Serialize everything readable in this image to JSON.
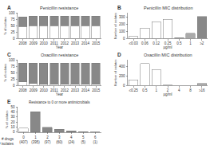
{
  "chart_data": [
    {
      "type": "bar",
      "title": "Penicillin resistance",
      "annotations": [
        "A"
      ],
      "x_label": "Year",
      "y_label": "% of isolates",
      "categories": [
        "2008",
        "2009",
        "2010",
        "2011",
        "2012",
        "2013",
        "2014",
        "2015"
      ],
      "stacked": true,
      "series": [
        {
          "color": "white",
          "values": [
            48,
            50,
            50,
            50,
            50,
            50,
            50,
            50
          ]
        },
        {
          "color": "#888888",
          "values": [
            37,
            38,
            38,
            38,
            38,
            38,
            38,
            38
          ]
        }
      ],
      "ylim": [
        0,
        100
      ],
      "yticks": [
        0,
        25,
        50,
        75,
        100
      ],
      "grid": false
    },
    {
      "type": "bar",
      "title": "Penicillin MIC distribution",
      "annotations": [
        "B"
      ],
      "x_label": "μg/ml",
      "y_label": "Number of isolates",
      "categories": [
        "≤0.03",
        "0.06",
        "0.12",
        "0.25",
        "0.5",
        "1",
        "≥2"
      ],
      "values": [
        28,
        145,
        235,
        270,
        14,
        75,
        310
      ],
      "colors": [
        "white",
        "white",
        "white",
        "white",
        "#aaaaaa",
        "#aaaaaa",
        "#888888"
      ],
      "ylim": [
        0,
        360
      ],
      "yticks": [
        0,
        100,
        200,
        300
      ],
      "grid": false
    },
    {
      "type": "bar",
      "title": "Oxacillin resistance",
      "annotations": [
        "C"
      ],
      "x_label": "Year",
      "y_label": "% of isolates",
      "categories": [
        "2008",
        "2009",
        "2010",
        "2011",
        "2012",
        "2013",
        "2014",
        "2015"
      ],
      "stacked": true,
      "series": [
        {
          "color": "white",
          "values": [
            13,
            8,
            5,
            5,
            5,
            5,
            5,
            5
          ]
        },
        {
          "color": "#888888",
          "values": [
            75,
            80,
            83,
            83,
            83,
            83,
            83,
            83
          ]
        }
      ],
      "ylim": [
        0,
        100
      ],
      "yticks": [
        0,
        25,
        50,
        75,
        100
      ],
      "grid": false
    },
    {
      "type": "bar",
      "title": "Oxacillin MIC distribution",
      "annotations": [
        "D"
      ],
      "x_label": "μg/ml",
      "y_label": "Number of isolates",
      "categories": [
        "≤0.25",
        "0.5",
        "1",
        "2",
        "4",
        "8",
        "≥16"
      ],
      "values": [
        115,
        470,
        340,
        5,
        2,
        2,
        45
      ],
      "colors": [
        "white",
        "white",
        "white",
        "#aaaaaa",
        "#aaaaaa",
        "#aaaaaa",
        "#aaaaaa"
      ],
      "ylim": [
        0,
        550
      ],
      "yticks": [
        0,
        200,
        400
      ],
      "grid": false
    },
    {
      "type": "bar",
      "title": "Resistance to 0 or more antimicrobials",
      "annotations": [
        "E"
      ],
      "x_label": "# drugs\n# isolates",
      "y_label": "% of isolates",
      "categories": [
        "0",
        "1",
        "2",
        "3",
        "4",
        "5",
        "6"
      ],
      "secondary_labels": [
        "(407)",
        "(395)",
        "(97)",
        "(60)",
        "(24)",
        "(5)",
        "(1)"
      ],
      "values": [
        8,
        40,
        10,
        6,
        3,
        1,
        0.5
      ],
      "colors": [
        "white",
        "#888888",
        "#888888",
        "#888888",
        "#888888",
        "#888888",
        "#888888"
      ],
      "ylim": [
        0,
        50
      ],
      "yticks": [
        0,
        10,
        20,
        30,
        40,
        50
      ],
      "grid": false
    }
  ]
}
